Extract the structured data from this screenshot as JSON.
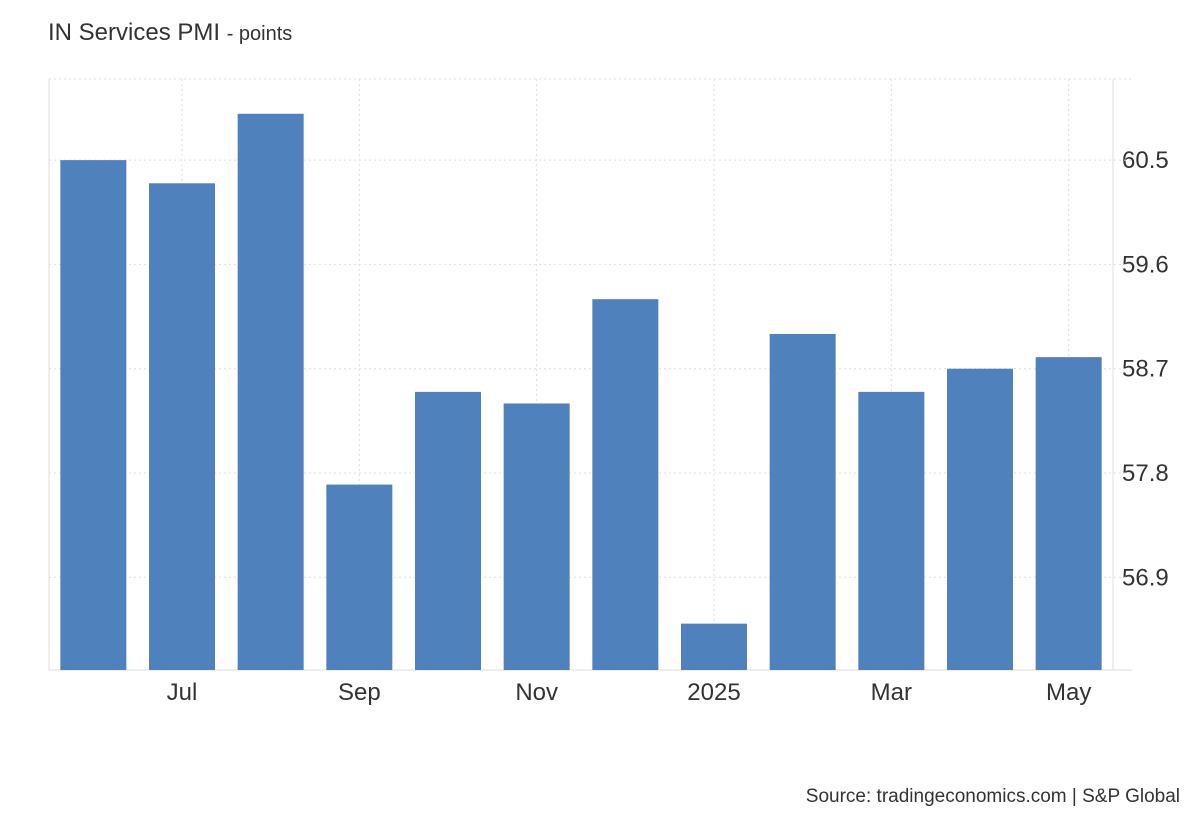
{
  "chart_data": {
    "type": "bar",
    "title": "IN Services PMI",
    "subtitle": "- points",
    "categories": [
      null,
      "Jul",
      null,
      "Sep",
      null,
      "Nov",
      null,
      "2025",
      null,
      "Mar",
      null,
      "May"
    ],
    "values": [
      60.5,
      60.3,
      60.9,
      57.7,
      58.5,
      58.4,
      59.3,
      56.5,
      59.0,
      58.5,
      58.7,
      58.8
    ],
    "color": "#4f81bd",
    "ylim": [
      56.1,
      61.2
    ],
    "yticks": [
      56.9,
      57.8,
      58.7,
      59.6,
      60.5
    ],
    "grid": true,
    "source": "Source: tradingeconomics.com | S&P Global"
  }
}
